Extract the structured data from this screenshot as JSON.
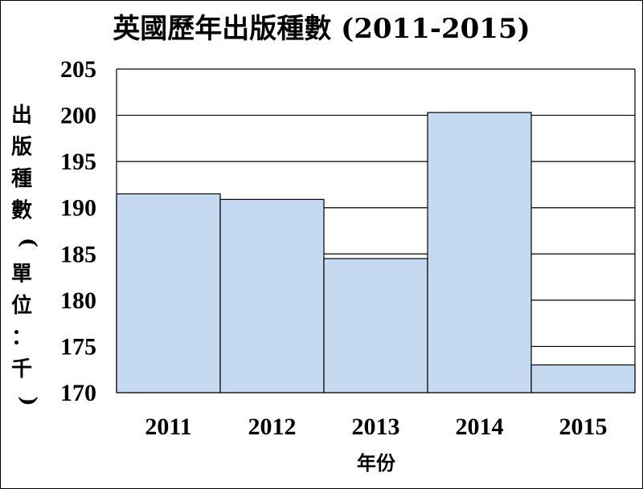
{
  "chart_data": {
    "type": "bar",
    "title": "英國歷年出版種數 (2011-2015)",
    "xlabel": "年份",
    "ylabel": "出版種數(單位：千)",
    "categories": [
      "2011",
      "2012",
      "2013",
      "2014",
      "2015"
    ],
    "values": [
      191.5,
      190.9,
      184.5,
      200.3,
      173.0
    ],
    "ylim": [
      170,
      205
    ],
    "yticks": [
      170,
      175,
      180,
      185,
      190,
      195,
      200,
      205
    ],
    "grid": true,
    "legend": "none",
    "colors": {
      "bar_fill": "#c5d9f1",
      "bar_stroke": "#000000",
      "grid": "#000000"
    }
  }
}
